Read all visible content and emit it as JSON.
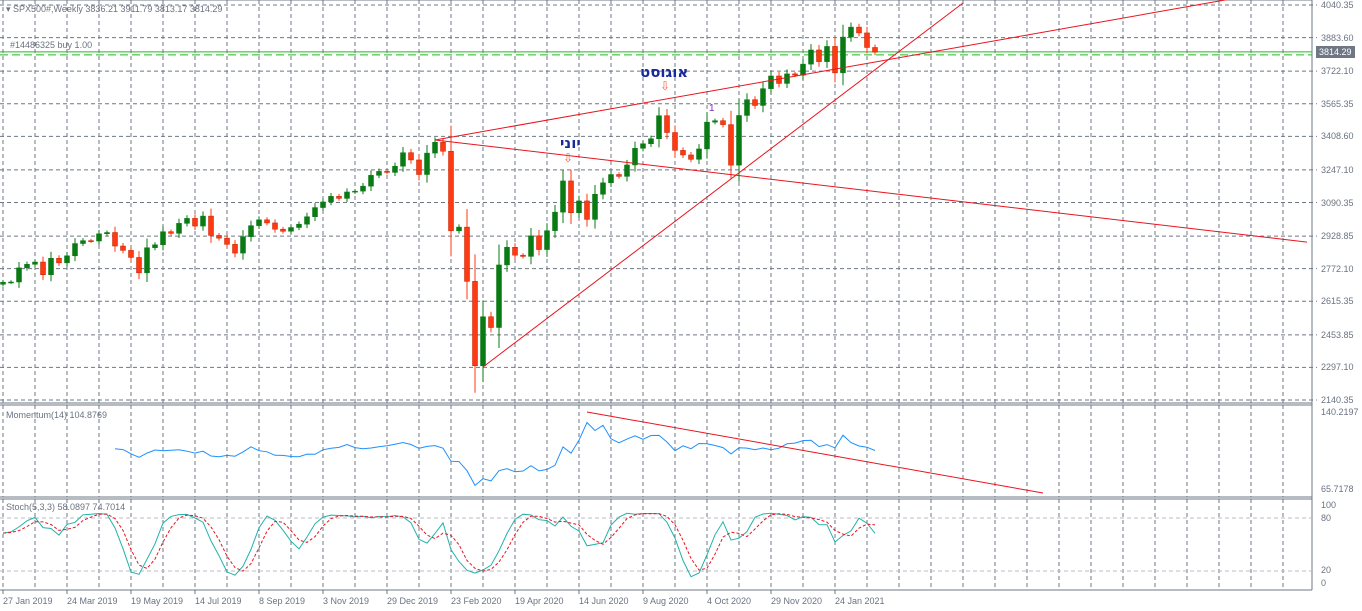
{
  "header": {
    "symbol": "SPX500#,Weekly",
    "ohlc": "3836.21 3911.79 3813.17 3814.29"
  },
  "order_label": "#14486325 buy 1.00",
  "current_price": "3814.29",
  "colors": {
    "bull": "#0a7a14",
    "bear": "#ff3a12",
    "trendline": "#e8141e",
    "grid": "#6f7784",
    "momentum": "#1e90ff",
    "stoch_main": "#20b2aa",
    "stoch_signal": "#e8141e",
    "order_line": "#22bb22"
  },
  "price_axis": [
    "4040.35",
    "3883.60",
    "3722.10",
    "3565.35",
    "3408.60",
    "3247.10",
    "3090.35",
    "2928.85",
    "2772.10",
    "2615.35",
    "2453.85",
    "2297.10",
    "2140.35"
  ],
  "momentum": {
    "label": "Momentum(14) 104.8769",
    "max": "140.2197",
    "min": "65.7178"
  },
  "stoch": {
    "label": "Stoch(5,3,3) 58.0897 74.7014",
    "levels": [
      "100",
      "80",
      "20",
      "0"
    ]
  },
  "time_axis": [
    "27 Jan 2019",
    "24 Mar 2019",
    "19 May 2019",
    "14 Jul 2019",
    "8 Sep 2019",
    "3 Nov 2019",
    "29 Dec 2019",
    "23 Feb 2020",
    "19 Apr 2020",
    "14 Jun 2020",
    "9 Aug 2020",
    "4 Oct 2020",
    "29 Nov 2020",
    "24 Jan 2021"
  ],
  "annotations": {
    "june": "יוני",
    "august": "אוגוסט",
    "wave": "1"
  },
  "chart_data": {
    "type": "candlestick",
    "start_week": "2019-01-27",
    "ylim": [
      2140.35,
      4040.35
    ],
    "close": [
      2707,
      2708,
      2776,
      2793,
      2804,
      2743,
      2822,
      2800,
      2834,
      2893,
      2907,
      2905,
      2940,
      2946,
      2881,
      2860,
      2826,
      2752,
      2873,
      2887,
      2950,
      2942,
      2990,
      3014,
      2977,
      3025,
      2932,
      2919,
      2889,
      2847,
      2926,
      2979,
      3007,
      2992,
      2962,
      2952,
      2970,
      2986,
      3022,
      3066,
      3093,
      3120,
      3110,
      3141,
      3145,
      3169,
      3221,
      3240,
      3235,
      3265,
      3330,
      3295,
      3225,
      3328,
      3380,
      3337,
      2954,
      2972,
      2711,
      2305,
      2541,
      2489,
      2790,
      2875,
      2837,
      2831,
      2930,
      2864,
      2955,
      3044,
      3194,
      3041,
      3098,
      3009,
      3130,
      3185,
      3225,
      3216,
      3271,
      3351,
      3373,
      3397,
      3508,
      3427,
      3341,
      3319,
      3298,
      3348,
      3477,
      3484,
      3465,
      3270,
      3509,
      3585,
      3557,
      3638,
      3699,
      3663,
      3709,
      3703,
      3756,
      3824,
      3768,
      3841,
      3714,
      3886,
      3934,
      3906,
      3836,
      3814
    ],
    "trendlines": [
      {
        "from": [
          "2020-02-09",
          3391
        ],
        "to": [
          "2022-01-09",
          4073
        ]
      },
      {
        "from": [
          "2020-02-09",
          3391
        ],
        "to": [
          "2022-03-13",
          2900
        ]
      },
      {
        "from": [
          "2020-03-22",
          2299
        ],
        "to": [
          "2021-05-16",
          4050
        ]
      }
    ],
    "momentum_trendline": {
      "from": [
        "2020-06-21",
        140.2
      ],
      "to": [
        "2021-07-25",
        65.7
      ]
    },
    "order_price": 3810
  }
}
